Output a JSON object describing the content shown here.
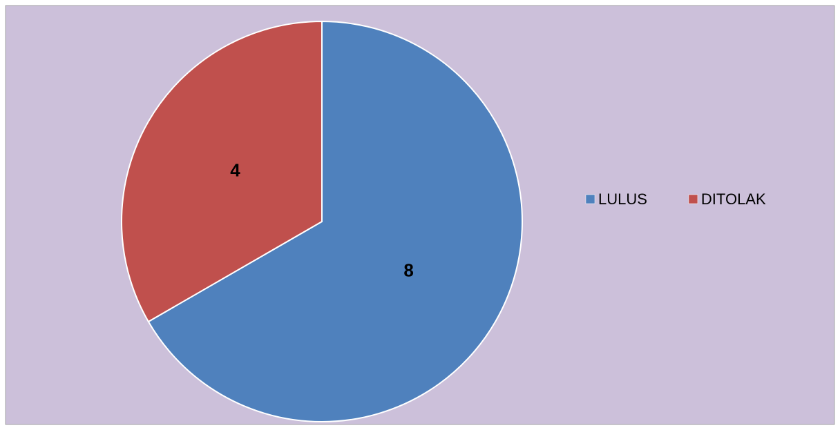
{
  "chart_data": {
    "type": "pie",
    "categories": [
      "LULUS",
      "DITOLAK"
    ],
    "values": [
      8,
      4
    ],
    "colors": [
      "#4f81bd",
      "#c0504d"
    ],
    "legend": "right"
  }
}
